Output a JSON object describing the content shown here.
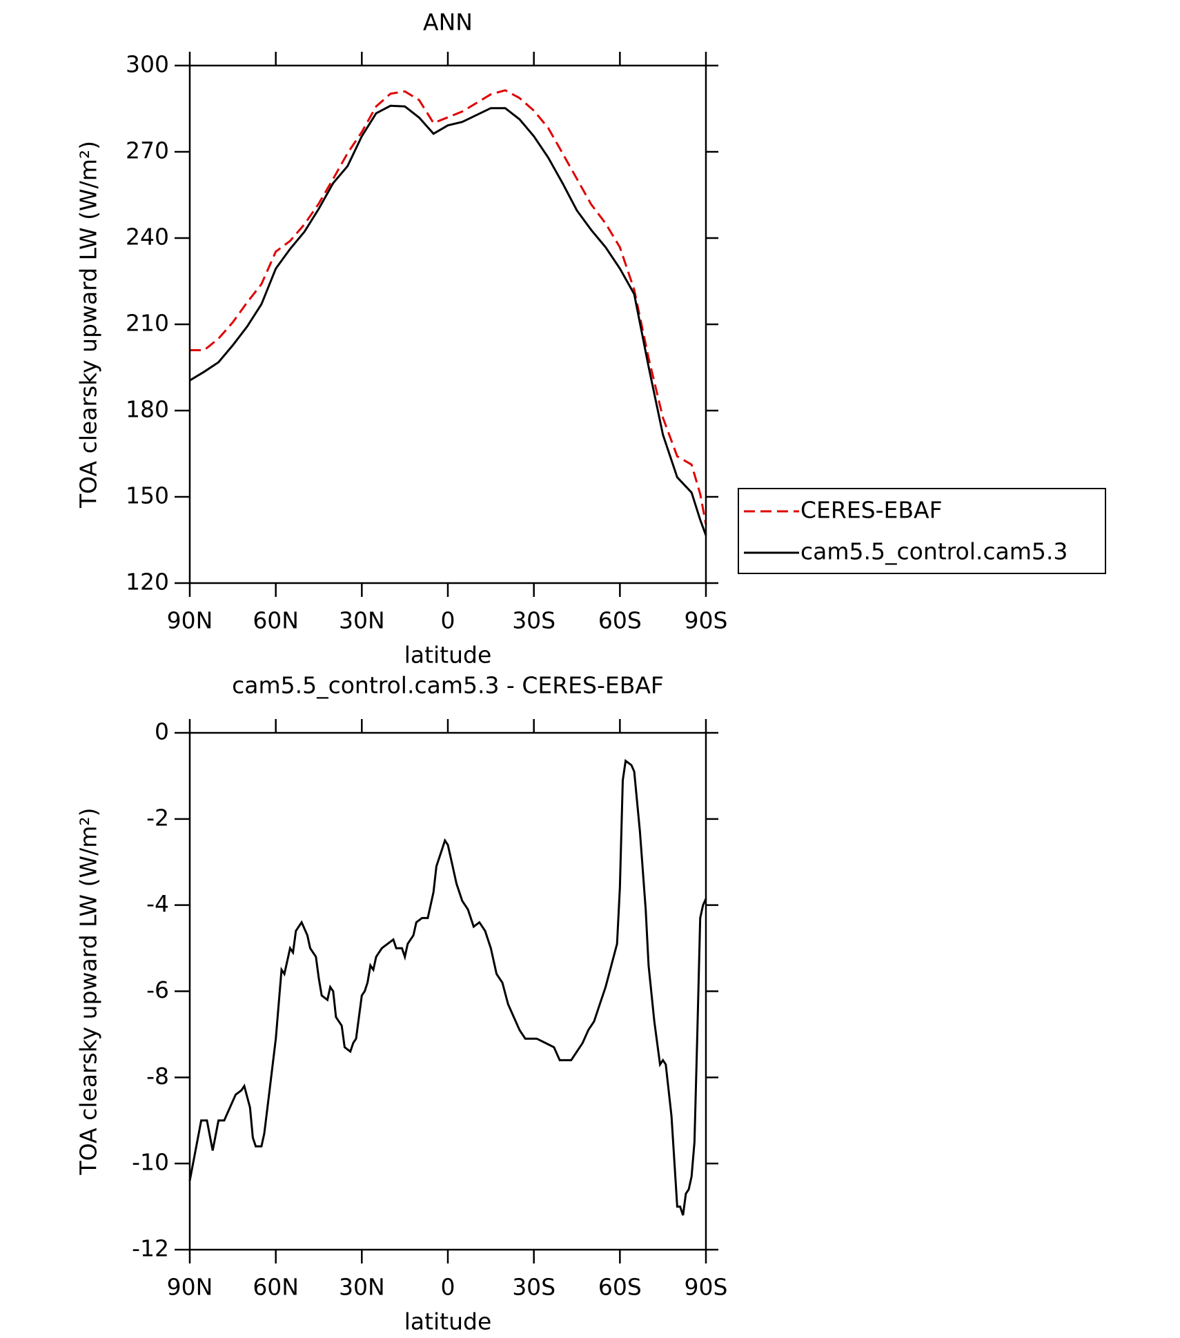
{
  "chart_data": [
    {
      "type": "line",
      "title": "ANN",
      "xlabel": "latitude",
      "ylabel": "TOA clearsky upward LW (W/m²)",
      "x": [
        90,
        85,
        80,
        75,
        70,
        65,
        60,
        55,
        50,
        45,
        40,
        35,
        30,
        25,
        20,
        15,
        10,
        5,
        0,
        -5,
        -10,
        -15,
        -20,
        -25,
        -30,
        -35,
        -40,
        -45,
        -50,
        -55,
        -60,
        -65,
        -70,
        -75,
        -80,
        -85,
        -88,
        -90
      ],
      "series": [
        {
          "name": "CERES-EBAF",
          "color": "#e00000",
          "linestyle": "dashed",
          "values": [
            201,
            201,
            205,
            210.7,
            217.6,
            224,
            235.3,
            239,
            244.8,
            252,
            260.6,
            269.5,
            276.9,
            285.8,
            290.2,
            291,
            288,
            280,
            282,
            284,
            287,
            290,
            291.4,
            288.7,
            284.3,
            278.3,
            269.5,
            260.6,
            251.7,
            245.1,
            236.8,
            222,
            198.3,
            177.5,
            164.1,
            161.2,
            151,
            140.4
          ]
        },
        {
          "name": "cam5.5_control.cam5.3",
          "color": "#000000",
          "linestyle": "solid",
          "values": [
            190.5,
            193.5,
            196.8,
            202.7,
            209.2,
            217,
            229.4,
            236.2,
            242.2,
            250.2,
            259.1,
            265,
            275.4,
            283.4,
            286,
            285.8,
            281.9,
            276.3,
            279.2,
            280.4,
            282.8,
            285.2,
            285.2,
            281.3,
            275.4,
            268,
            259.1,
            249.6,
            242.8,
            236.8,
            229.4,
            220.5,
            195.3,
            171.6,
            156.8,
            151.5,
            142,
            136.6
          ]
        }
      ],
      "xlim": [
        90,
        -90
      ],
      "xticks": [
        {
          "value": 90,
          "label": "90N"
        },
        {
          "value": 60,
          "label": "60N"
        },
        {
          "value": 30,
          "label": "30N"
        },
        0,
        {
          "value": -30,
          "label": "30S"
        },
        {
          "value": -60,
          "label": "60S"
        },
        {
          "value": -90,
          "label": "90S"
        }
      ],
      "ylim": [
        120,
        300
      ],
      "yticks": [
        120,
        150,
        180,
        210,
        240,
        270,
        300
      ],
      "legend": "right"
    },
    {
      "type": "line",
      "title": "cam5.5_control.cam5.3 - CERES-EBAF",
      "xlabel": "latitude",
      "ylabel": "TOA clearsky upward LW (W/m²)",
      "x": [
        90,
        88,
        86,
        84,
        82,
        80,
        78,
        76,
        74,
        72,
        71,
        69,
        68,
        67,
        65,
        64,
        62,
        60,
        58,
        57,
        55,
        54,
        53,
        51,
        49,
        48,
        46,
        45,
        44,
        42,
        41,
        40,
        39,
        37,
        36,
        34,
        33,
        32,
        30,
        29,
        28,
        27,
        26,
        25,
        23,
        21,
        19,
        18,
        16,
        15,
        14,
        12,
        11,
        9,
        7,
        5,
        4,
        2,
        1,
        0,
        -1,
        -3,
        -5,
        -7,
        -9,
        -11,
        -13,
        -15,
        -17,
        -19,
        -21,
        -23,
        -25,
        -27,
        -29,
        -31,
        -34,
        -37,
        -39,
        -41,
        -43,
        -45,
        -47,
        -49,
        -51,
        -53,
        -55,
        -57,
        -59,
        -60,
        -61,
        -62,
        -64,
        -65,
        -67,
        -69,
        -70,
        -72,
        -74,
        -75,
        -76,
        -78,
        -80,
        -81,
        -82,
        -83,
        -84,
        -85,
        -86,
        -87,
        -88,
        -89,
        -90
      ],
      "series": [
        {
          "name": "cam5.5_control.cam5.3 - CERES-EBAF",
          "color": "#000000",
          "linestyle": "solid",
          "values": [
            -10.4,
            -9.7,
            -9.0,
            -9.0,
            -9.7,
            -9.0,
            -9.0,
            -8.7,
            -8.4,
            -8.3,
            -8.2,
            -8.7,
            -9.4,
            -9.6,
            -9.6,
            -9.3,
            -8.2,
            -7.1,
            -5.5,
            -5.6,
            -5.0,
            -5.1,
            -4.6,
            -4.4,
            -4.7,
            -5.0,
            -5.2,
            -5.7,
            -6.1,
            -6.2,
            -5.9,
            -6.0,
            -6.6,
            -6.8,
            -7.3,
            -7.4,
            -7.2,
            -7.1,
            -6.1,
            -6.0,
            -5.8,
            -5.4,
            -5.5,
            -5.2,
            -5.0,
            -4.9,
            -4.8,
            -5.0,
            -5.0,
            -5.2,
            -4.9,
            -4.7,
            -4.4,
            -4.3,
            -4.3,
            -3.7,
            -3.1,
            -2.7,
            -2.5,
            -2.6,
            -2.9,
            -3.5,
            -3.9,
            -4.1,
            -4.5,
            -4.4,
            -4.6,
            -5.0,
            -5.6,
            -5.8,
            -6.3,
            -6.6,
            -6.9,
            -7.1,
            -7.1,
            -7.1,
            -7.2,
            -7.3,
            -7.6,
            -7.6,
            -7.6,
            -7.4,
            -7.2,
            -6.9,
            -6.7,
            -6.3,
            -5.9,
            -5.4,
            -4.9,
            -3.6,
            -1.1,
            -0.65,
            -0.75,
            -0.9,
            -2.3,
            -4.1,
            -5.4,
            -6.7,
            -7.7,
            -7.6,
            -7.7,
            -8.9,
            -11.0,
            -11.0,
            -11.2,
            -10.7,
            -10.6,
            -10.3,
            -9.5,
            -7.0,
            -4.3,
            -4.0,
            -3.85
          ]
        }
      ],
      "xlim": [
        90,
        -90
      ],
      "xticks": [
        {
          "value": 90,
          "label": "90N"
        },
        {
          "value": 60,
          "label": "60N"
        },
        {
          "value": 30,
          "label": "30N"
        },
        0,
        {
          "value": -30,
          "label": "30S"
        },
        {
          "value": -60,
          "label": "60S"
        },
        {
          "value": -90,
          "label": "90S"
        }
      ],
      "ylim": [
        -12,
        0
      ],
      "yticks": [
        -12,
        -10,
        -8,
        -6,
        -4,
        -2,
        0
      ]
    }
  ]
}
